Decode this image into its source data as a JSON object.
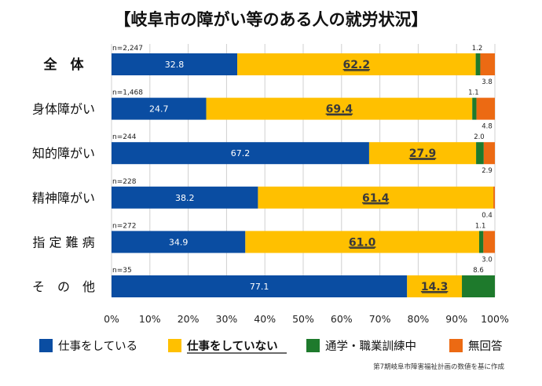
{
  "chart_data": {
    "type": "bar",
    "orientation": "horizontal",
    "stacked": true,
    "title": "【岐阜市の障がい等のある人の就労状況】",
    "categories": [
      "全　体",
      "身体障がい",
      "知的障がい",
      "精神障がい",
      "指 定 難 病",
      "そ　の　他"
    ],
    "sample_sizes": [
      "n=2,247",
      "n=1,468",
      "n=244",
      "n=228",
      "n=272",
      "n=35"
    ],
    "series": [
      {
        "name": "仕事をしている",
        "color": "#0a4da2",
        "values": [
          32.8,
          24.7,
          67.2,
          38.2,
          34.9,
          77.1
        ],
        "labels": [
          "32.8",
          "24.7",
          "67.2",
          "38.2",
          "34.9",
          "77.1"
        ]
      },
      {
        "name": "仕事をしていない",
        "color": "#ffc000",
        "emphasis": true,
        "values": [
          62.2,
          69.4,
          27.9,
          61.4,
          61.0,
          14.3
        ],
        "labels": [
          "62.2",
          "69.4",
          "27.9",
          "61.4",
          "61.0",
          "14.3"
        ]
      },
      {
        "name": "通学・職業訓練中",
        "color": "#1e7a2c",
        "values": [
          1.2,
          1.1,
          2.0,
          0.0,
          1.1,
          8.6
        ],
        "labels": [
          "1.2",
          "1.1",
          "2.0",
          "",
          "1.1",
          "8.6"
        ]
      },
      {
        "name": "無回答",
        "color": "#ec6a13",
        "values": [
          3.8,
          4.8,
          2.9,
          0.4,
          3.0,
          0.0
        ],
        "labels": [
          "3.8",
          "4.8",
          "2.9",
          "0.4",
          "3.0",
          ""
        ]
      }
    ],
    "xlim": [
      0,
      100
    ],
    "xticks": [
      "0%",
      "10%",
      "20%",
      "30%",
      "40%",
      "50%",
      "60%",
      "70%",
      "80%",
      "90%",
      "100%"
    ],
    "grid": true,
    "legend_position": "bottom",
    "source_note": "第7期岐阜市障害福祉計画の数値を基に作成"
  }
}
